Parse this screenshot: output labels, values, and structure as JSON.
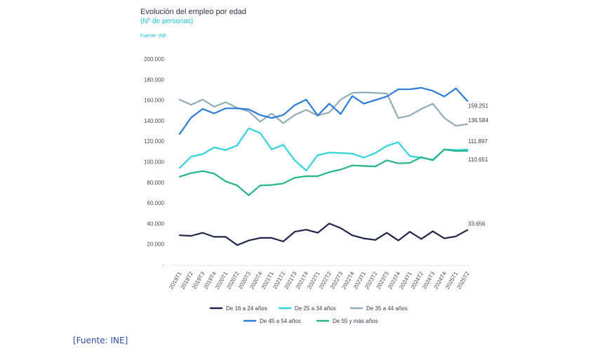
{
  "chart_data": {
    "type": "line",
    "title": "Evolución del empleo por edad",
    "subtitle": "(Nº de personas)",
    "source": "Fuente: INE",
    "categories": [
      "2019T1",
      "2019T2",
      "2019T3",
      "2019T4",
      "2020T1",
      "2020T2",
      "2020T3",
      "2020T4",
      "2021T1",
      "2021T2",
      "2021T3",
      "2021T4",
      "2022T1",
      "2022T2",
      "2022T3",
      "2022T4",
      "2023T1",
      "2023T2",
      "2023T3",
      "2023T4",
      "2024T1",
      "2024T2",
      "2024T3",
      "2024T4",
      "2025T1",
      "2025T2"
    ],
    "y_ticks": [
      "-",
      "20.000",
      "40.000",
      "60.000",
      "80.000",
      "100.000",
      "120.000",
      "140.000",
      "160.000",
      "180.000",
      "200.000"
    ],
    "ylim": [
      0,
      200000
    ],
    "series": [
      {
        "name": "De 16 a 24 años",
        "color": "#1f2548",
        "values": [
          28500,
          28000,
          31000,
          27000,
          27000,
          19000,
          23500,
          26000,
          26000,
          22500,
          32000,
          34000,
          31000,
          40000,
          35500,
          28500,
          25500,
          24000,
          31000,
          23500,
          32000,
          25000,
          32500,
          25500,
          27500,
          33656
        ],
        "end_label": "33.656"
      },
      {
        "name": "De 25 a 34 años",
        "color": "#2fd2dc",
        "values": [
          94000,
          105000,
          107500,
          114000,
          111500,
          116000,
          132500,
          128000,
          112000,
          116500,
          101500,
          91500,
          106500,
          109000,
          108500,
          108000,
          104000,
          108500,
          115500,
          119000,
          105500,
          104000,
          102000,
          112000,
          111500,
          111897
        ],
        "end_label": "111.897"
      },
      {
        "name": "De 35 a 44 años",
        "color": "#93aab8",
        "values": [
          160500,
          155500,
          160500,
          153500,
          158000,
          152500,
          149000,
          139000,
          147000,
          137500,
          145500,
          150500,
          145000,
          148000,
          160500,
          167000,
          167500,
          167000,
          166500,
          142500,
          145000,
          151500,
          156500,
          142500,
          135000,
          136584
        ],
        "end_label": "136.584"
      },
      {
        "name": "De 45 a 54 años",
        "color": "#2a7cd8",
        "values": [
          127000,
          143000,
          151500,
          147000,
          152000,
          152000,
          151000,
          145500,
          142500,
          145500,
          155000,
          160500,
          145000,
          156500,
          146500,
          164000,
          156500,
          160000,
          163500,
          170500,
          170500,
          172000,
          169000,
          163500,
          171500,
          159251
        ],
        "end_label": "159.251"
      },
      {
        "name": "De 55 y más años",
        "color": "#23b48c",
        "values": [
          85500,
          89000,
          91000,
          88500,
          81000,
          77000,
          67500,
          77000,
          77500,
          79000,
          84500,
          86000,
          86000,
          90000,
          92500,
          96500,
          96000,
          95500,
          101500,
          98500,
          99000,
          104500,
          101500,
          112000,
          110500,
          110651
        ],
        "end_label": "110.651"
      }
    ],
    "legend": {
      "placement": "bottom"
    }
  },
  "footer": {
    "source": "[Fuente: INE]"
  }
}
